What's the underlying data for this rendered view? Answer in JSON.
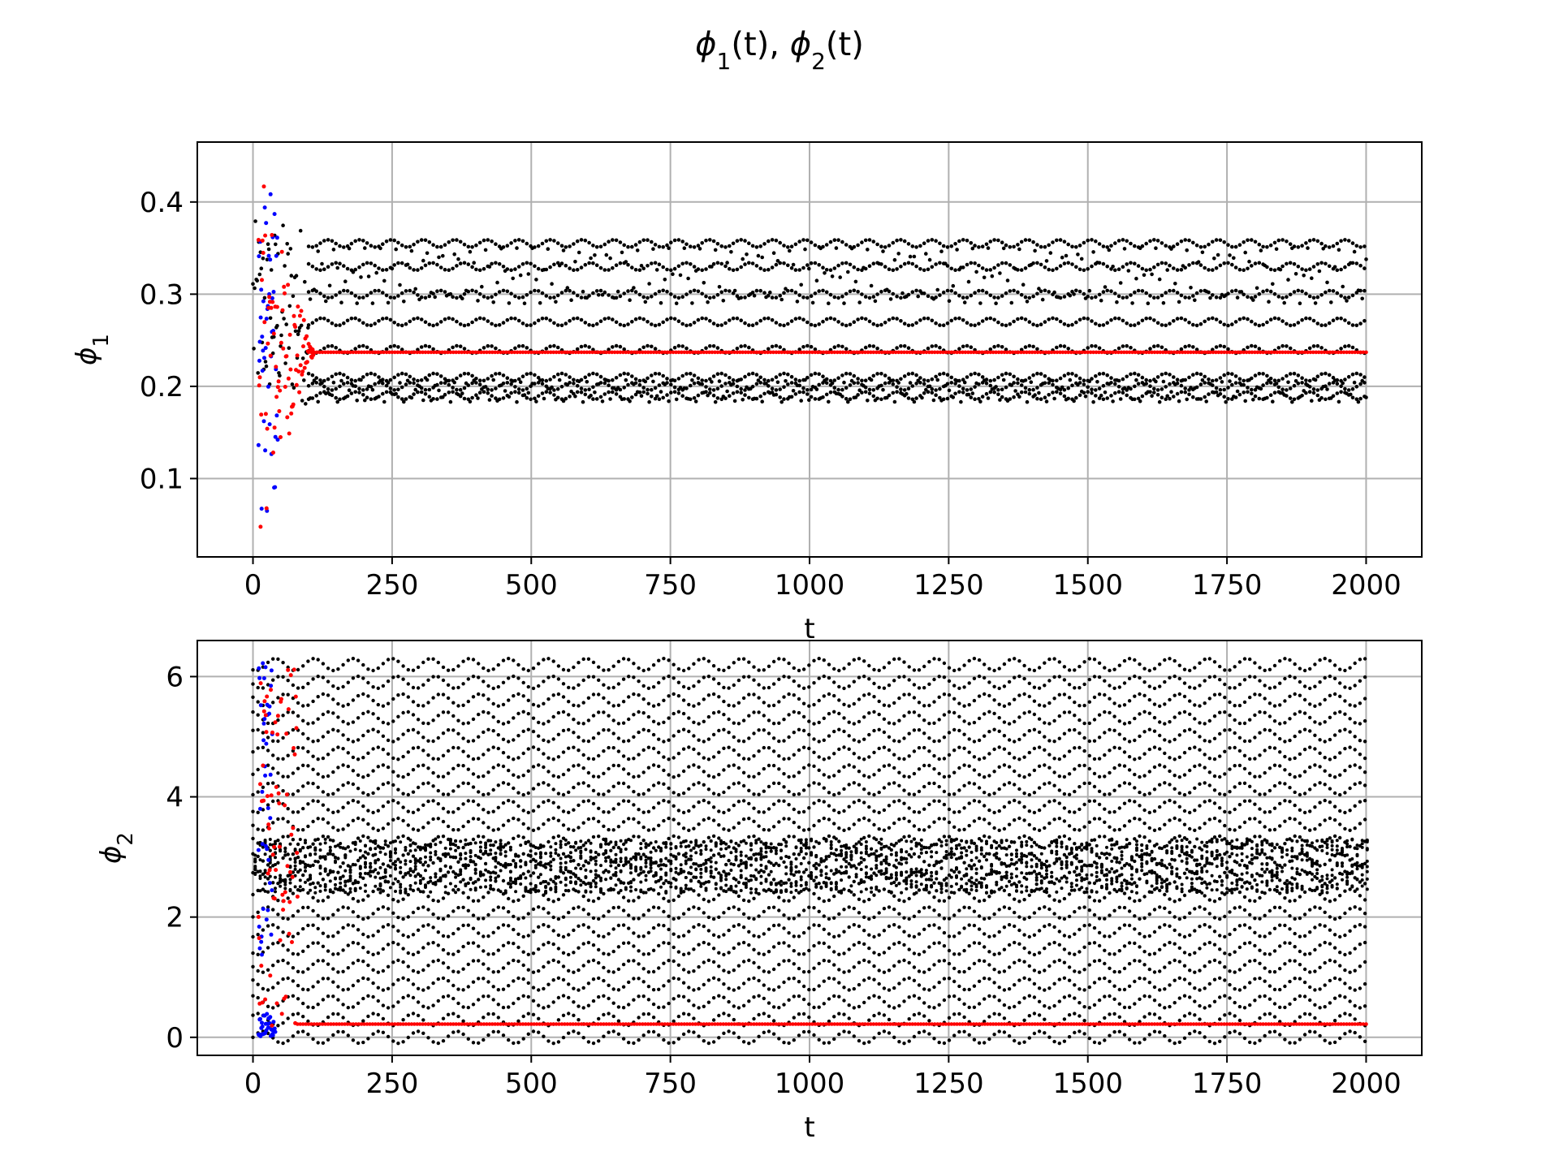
{
  "figure": {
    "title_parts": [
      "ϕ",
      "1",
      "(t), ",
      "ϕ",
      "2",
      "(t)"
    ]
  },
  "chart_data": [
    {
      "type": "scatter",
      "id": "phi1",
      "title": "",
      "xlabel": "t",
      "ylabel_base": "ϕ",
      "ylabel_sub": "1",
      "xlim": [
        -100,
        2100
      ],
      "ylim": [
        0.015,
        0.465
      ],
      "xticks": [
        0,
        250,
        500,
        750,
        1000,
        1250,
        1500,
        1750,
        2000
      ],
      "yticks": [
        0.1,
        0.2,
        0.3,
        0.4
      ],
      "ytick_labels": [
        "0.1",
        "0.2",
        "0.3",
        "0.4"
      ],
      "grid": true,
      "series": [
        {
          "color": "#000000",
          "description_level": "dense",
          "transient_t": [
            0,
            100
          ],
          "steady_t": [
            100,
            2000
          ],
          "levels": [
            0.19,
            0.2,
            0.21,
            0.24,
            0.27,
            0.3,
            0.33,
            0.355
          ],
          "band": [
            0.19,
            0.355
          ]
        },
        {
          "color": "#0000ff",
          "transient_t": [
            10,
            45
          ],
          "range": [
            0.06,
            0.41
          ],
          "steady_value": 0.237
        },
        {
          "color": "#ff0000",
          "transient_t": [
            10,
            110
          ],
          "range": [
            0.04,
            0.44
          ],
          "steady_value": 0.237,
          "steady_t": [
            100,
            2000
          ]
        }
      ]
    },
    {
      "type": "scatter",
      "id": "phi2",
      "title": "",
      "xlabel": "t",
      "ylabel_base": "ϕ",
      "ylabel_sub": "2",
      "xlim": [
        -100,
        2100
      ],
      "ylim": [
        -0.3,
        6.6
      ],
      "xticks": [
        0,
        250,
        500,
        750,
        1000,
        1250,
        1500,
        1750,
        2000
      ],
      "yticks": [
        0,
        2,
        4,
        6
      ],
      "ytick_labels": [
        "0",
        "2",
        "4",
        "6"
      ],
      "grid": true,
      "series": [
        {
          "color": "#000000",
          "band": [
            0.0,
            6.2
          ],
          "dense_core": [
            2.4,
            3.3
          ],
          "steady_t": [
            0,
            2000
          ]
        },
        {
          "color": "#0000ff",
          "transient_t": [
            10,
            35
          ],
          "range": [
            0.0,
            6.25
          ]
        },
        {
          "color": "#ff0000",
          "transient_t": [
            10,
            80
          ],
          "range": [
            0.0,
            6.25
          ],
          "steady_value": 0.22,
          "steady_t": [
            80,
            2000
          ]
        }
      ]
    }
  ]
}
